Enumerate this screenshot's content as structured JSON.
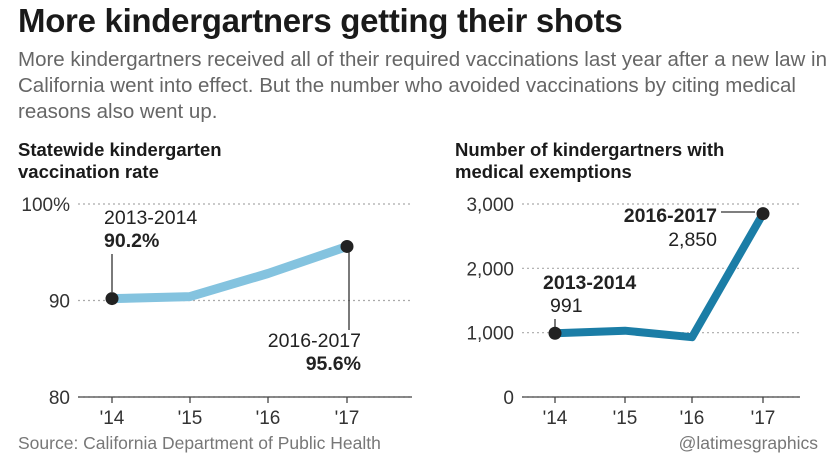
{
  "headline": "More kindergartners getting their shots",
  "dek": "More kindergartners received all of their required vaccinations last year after a new law in California went into effect. But the number who avoided vaccinations by citing medical reasons also went up.",
  "source": "Source: California Department of Public Health",
  "credit": "@latimesgraphics",
  "colors": {
    "rate_line": "#84c3df",
    "exemption_line": "#1b7da6",
    "dot": "#222222",
    "grid": "#aaaaaa",
    "text": "#222222"
  },
  "chart_data": [
    {
      "type": "line",
      "title_lines": [
        "Statewide kindergarten",
        "vaccination rate"
      ],
      "categories": [
        "'14",
        "'15",
        "'16",
        "'17"
      ],
      "values": [
        90.2,
        90.4,
        92.8,
        95.6
      ],
      "ylim": [
        80,
        100
      ],
      "yticks": [
        80,
        90,
        100
      ],
      "ytick_labels": [
        "80",
        "90",
        "100%"
      ],
      "grid": true,
      "annotations": [
        {
          "index": 0,
          "label": "2013-2014",
          "value_label": "90.2%"
        },
        {
          "index": 3,
          "label": "2016-2017",
          "value_label": "95.6%"
        }
      ]
    },
    {
      "type": "line",
      "title_lines": [
        "Number of kindergartners with",
        "medical exemptions"
      ],
      "categories": [
        "'14",
        "'15",
        "'16",
        "'17"
      ],
      "values": [
        991,
        1030,
        930,
        2850
      ],
      "ylim": [
        0,
        3000
      ],
      "yticks": [
        0,
        1000,
        2000,
        3000
      ],
      "ytick_labels": [
        "0",
        "1,000",
        "2,000",
        "3,000"
      ],
      "grid": true,
      "annotations": [
        {
          "index": 0,
          "label": "2013-2014",
          "value_label": "991"
        },
        {
          "index": 3,
          "label": "2016-2017",
          "value_label": "2,850"
        }
      ]
    }
  ]
}
